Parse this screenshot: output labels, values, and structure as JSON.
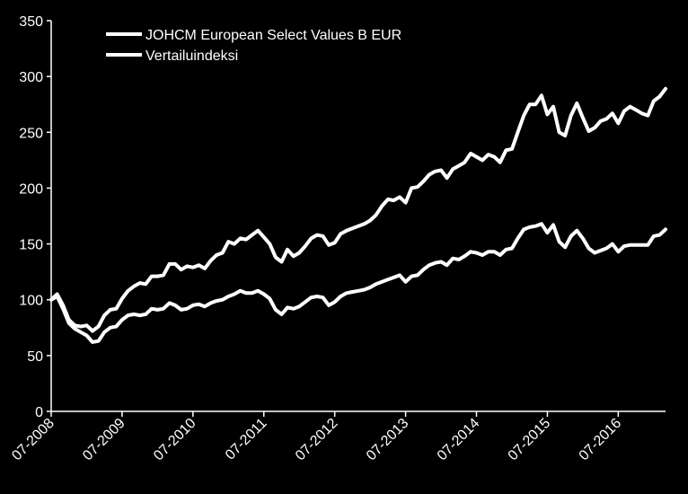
{
  "chart_data": {
    "type": "line",
    "title": "",
    "xlabel": "",
    "ylabel": "",
    "ylim": [
      0,
      350
    ],
    "yticks": [
      0,
      50,
      100,
      150,
      200,
      250,
      300,
      350
    ],
    "xtick_labels": [
      "07-2008",
      "07-2009",
      "07-2010",
      "07-2011",
      "07-2012",
      "07-2013",
      "07-2014",
      "07-2015",
      "07-2016"
    ],
    "grid": false,
    "legend_position": "top-left",
    "line_color": "#ffffff",
    "background": "#000000",
    "series": [
      {
        "name": "JOHCM European Select Values B EUR",
        "x": [
          2008.5,
          2008.583,
          2008.667,
          2008.75,
          2008.833,
          2008.917,
          2009.0,
          2009.083,
          2009.167,
          2009.25,
          2009.333,
          2009.417,
          2009.5,
          2009.583,
          2009.667,
          2009.75,
          2009.833,
          2009.917,
          2010.0,
          2010.083,
          2010.167,
          2010.25,
          2010.333,
          2010.417,
          2010.5,
          2010.583,
          2010.667,
          2010.75,
          2010.833,
          2010.917,
          2011.0,
          2011.083,
          2011.167,
          2011.25,
          2011.333,
          2011.417,
          2011.5,
          2011.583,
          2011.667,
          2011.75,
          2011.833,
          2011.917,
          2012.0,
          2012.083,
          2012.167,
          2012.25,
          2012.333,
          2012.417,
          2012.5,
          2012.583,
          2012.667,
          2012.75,
          2012.833,
          2012.917,
          2013.0,
          2013.083,
          2013.167,
          2013.25,
          2013.333,
          2013.417,
          2013.5,
          2013.583,
          2013.667,
          2013.75,
          2013.833,
          2013.917,
          2014.0,
          2014.083,
          2014.167,
          2014.25,
          2014.333,
          2014.417,
          2014.5,
          2014.583,
          2014.667,
          2014.75,
          2014.833,
          2014.917,
          2015.0,
          2015.083,
          2015.167,
          2015.25,
          2015.333,
          2015.417,
          2015.5,
          2015.583,
          2015.667,
          2015.75,
          2015.833,
          2015.917,
          2016.0,
          2016.083,
          2016.167,
          2016.25,
          2016.333,
          2016.417,
          2016.5,
          2016.583,
          2016.667,
          2016.75,
          2016.833,
          2016.917,
          2017.0,
          2017.083,
          2017.167
        ],
        "values": [
          100,
          105,
          95,
          82,
          77,
          76,
          77,
          72,
          76,
          86,
          91,
          92,
          101,
          108,
          112,
          115,
          114,
          121,
          121,
          122,
          132,
          132,
          127,
          130,
          129,
          131,
          128,
          135,
          140,
          142,
          152,
          150,
          155,
          154,
          158,
          162,
          156,
          150,
          138,
          134,
          145,
          139,
          142,
          148,
          155,
          158,
          157,
          149,
          151,
          159,
          162,
          164,
          166,
          168,
          171,
          176,
          184,
          190,
          189,
          192,
          187,
          200,
          201,
          206,
          212,
          215,
          216,
          209,
          217,
          220,
          223,
          231,
          228,
          225,
          230,
          228,
          223,
          234,
          235,
          250,
          265,
          275,
          275,
          283,
          266,
          273,
          250,
          247,
          265,
          276,
          263,
          251,
          254,
          260,
          262,
          267,
          258,
          269,
          273,
          270,
          267,
          265,
          278,
          282,
          289
        ]
      },
      {
        "name": "Vertailuindeksi",
        "x": [
          2008.5,
          2008.583,
          2008.667,
          2008.75,
          2008.833,
          2008.917,
          2009.0,
          2009.083,
          2009.167,
          2009.25,
          2009.333,
          2009.417,
          2009.5,
          2009.583,
          2009.667,
          2009.75,
          2009.833,
          2009.917,
          2010.0,
          2010.083,
          2010.167,
          2010.25,
          2010.333,
          2010.417,
          2010.5,
          2010.583,
          2010.667,
          2010.75,
          2010.833,
          2010.917,
          2011.0,
          2011.083,
          2011.167,
          2011.25,
          2011.333,
          2011.417,
          2011.5,
          2011.583,
          2011.667,
          2011.75,
          2011.833,
          2011.917,
          2012.0,
          2012.083,
          2012.167,
          2012.25,
          2012.333,
          2012.417,
          2012.5,
          2012.583,
          2012.667,
          2012.75,
          2012.833,
          2012.917,
          2013.0,
          2013.083,
          2013.167,
          2013.25,
          2013.333,
          2013.417,
          2013.5,
          2013.583,
          2013.667,
          2013.75,
          2013.833,
          2013.917,
          2014.0,
          2014.083,
          2014.167,
          2014.25,
          2014.333,
          2014.417,
          2014.5,
          2014.583,
          2014.667,
          2014.75,
          2014.833,
          2014.917,
          2015.0,
          2015.083,
          2015.167,
          2015.25,
          2015.333,
          2015.417,
          2015.5,
          2015.583,
          2015.667,
          2015.75,
          2015.833,
          2015.917,
          2016.0,
          2016.083,
          2016.167,
          2016.25,
          2016.333,
          2016.417,
          2016.5,
          2016.583,
          2016.667,
          2016.75,
          2016.833,
          2016.917,
          2017.0,
          2017.083,
          2017.167
        ],
        "values": [
          100,
          103,
          92,
          79,
          74,
          71,
          68,
          62,
          63,
          71,
          75,
          76,
          82,
          86,
          87,
          86,
          87,
          92,
          91,
          92,
          97,
          95,
          91,
          92,
          95,
          96,
          94,
          97,
          99,
          100,
          103,
          105,
          108,
          106,
          106,
          108,
          105,
          101,
          91,
          87,
          93,
          92,
          94,
          98,
          102,
          103,
          102,
          95,
          98,
          103,
          106,
          107,
          108,
          109,
          111,
          114,
          116,
          118,
          120,
          122,
          116,
          121,
          122,
          127,
          131,
          133,
          134,
          131,
          137,
          136,
          139,
          143,
          142,
          140,
          143,
          143,
          140,
          145,
          146,
          155,
          163,
          165,
          166,
          168,
          160,
          167,
          152,
          147,
          157,
          162,
          155,
          146,
          142,
          144,
          146,
          150,
          143,
          148,
          149,
          149,
          149,
          149,
          157,
          158,
          163
        ]
      }
    ]
  }
}
